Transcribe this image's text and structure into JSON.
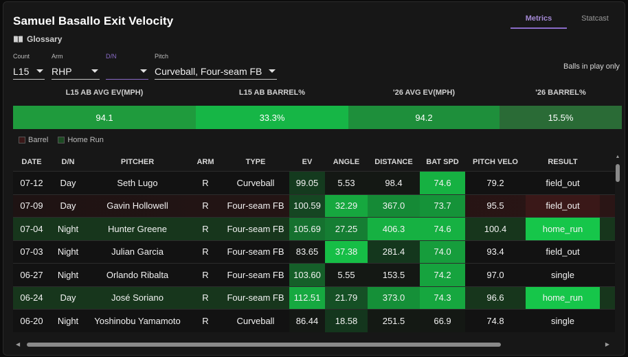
{
  "title": "Samuel Basallo Exit Velocity",
  "glossary_label": "Glossary",
  "tabs": [
    {
      "label": "Metrics",
      "active": true
    },
    {
      "label": "Statcast",
      "active": false
    }
  ],
  "filters": {
    "count": {
      "label": "Count",
      "value": "L15"
    },
    "arm": {
      "label": "Arm",
      "value": "RHP"
    },
    "dn": {
      "label": "D/N",
      "value": ""
    },
    "pitch": {
      "label": "Pitch",
      "value": "Curveball, Four-seam FB"
    }
  },
  "balls_in_play_label": "Balls in play only",
  "summary": {
    "headers": [
      "L15 AB AVG EV(MPH)",
      "L15 AB BARREL%",
      "'26 AVG EV(MPH)",
      "'26 BARREL%"
    ],
    "values": [
      "94.1",
      "33.3%",
      "94.2",
      "15.5%"
    ],
    "colors": [
      "#1f9b3d",
      "#16b646",
      "#1e8f3b",
      "#2a6b36"
    ]
  },
  "legend": {
    "barrel": "Barrel",
    "home_run": "Home Run"
  },
  "colors": {
    "barrel_swatch": "#3a1818",
    "home_run_swatch": "#1c4a22",
    "accent": "#8b6cc9"
  },
  "table": {
    "headers": [
      "DATE",
      "D/N",
      "PITCHER",
      "ARM",
      "TYPE",
      "EV",
      "ANGLE",
      "DISTANCE",
      "BAT SPD",
      "PITCH VELO",
      "RESULT"
    ],
    "rows": [
      {
        "date": "07-12",
        "dn": "Day",
        "pitcher": "Seth Lugo",
        "arm": "R",
        "type": "Curveball",
        "ev": "99.05",
        "angle": "5.53",
        "distance": "98.4",
        "bat_spd": "74.6",
        "pitch_velo": "79.2",
        "result": "field_out"
      },
      {
        "date": "07-09",
        "dn": "Day",
        "pitcher": "Gavin Hollowell",
        "arm": "R",
        "type": "Four-seam FB",
        "ev": "100.59",
        "angle": "32.29",
        "distance": "367.0",
        "bat_spd": "73.7",
        "pitch_velo": "95.5",
        "result": "field_out"
      },
      {
        "date": "07-04",
        "dn": "Night",
        "pitcher": "Hunter Greene",
        "arm": "R",
        "type": "Four-seam FB",
        "ev": "105.69",
        "angle": "27.25",
        "distance": "406.3",
        "bat_spd": "74.6",
        "pitch_velo": "100.4",
        "result": "home_run"
      },
      {
        "date": "07-03",
        "dn": "Night",
        "pitcher": "Julian Garcia",
        "arm": "R",
        "type": "Four-seam FB",
        "ev": "83.65",
        "angle": "37.38",
        "distance": "281.4",
        "bat_spd": "74.0",
        "pitch_velo": "93.4",
        "result": "field_out"
      },
      {
        "date": "06-27",
        "dn": "Night",
        "pitcher": "Orlando Ribalta",
        "arm": "R",
        "type": "Four-seam FB",
        "ev": "103.60",
        "angle": "5.55",
        "distance": "153.5",
        "bat_spd": "74.2",
        "pitch_velo": "97.0",
        "result": "single"
      },
      {
        "date": "06-24",
        "dn": "Day",
        "pitcher": "José Soriano",
        "arm": "R",
        "type": "Four-seam FB",
        "ev": "112.51",
        "angle": "21.79",
        "distance": "373.0",
        "bat_spd": "74.3",
        "pitch_velo": "96.6",
        "result": "home_run"
      },
      {
        "date": "06-20",
        "dn": "Night",
        "pitcher": "Yoshinobu Yamamoto",
        "arm": "R",
        "type": "Curveball",
        "ev": "86.44",
        "angle": "18.58",
        "distance": "251.5",
        "bat_spd": "66.9",
        "pitch_velo": "74.8",
        "result": "single"
      }
    ]
  }
}
